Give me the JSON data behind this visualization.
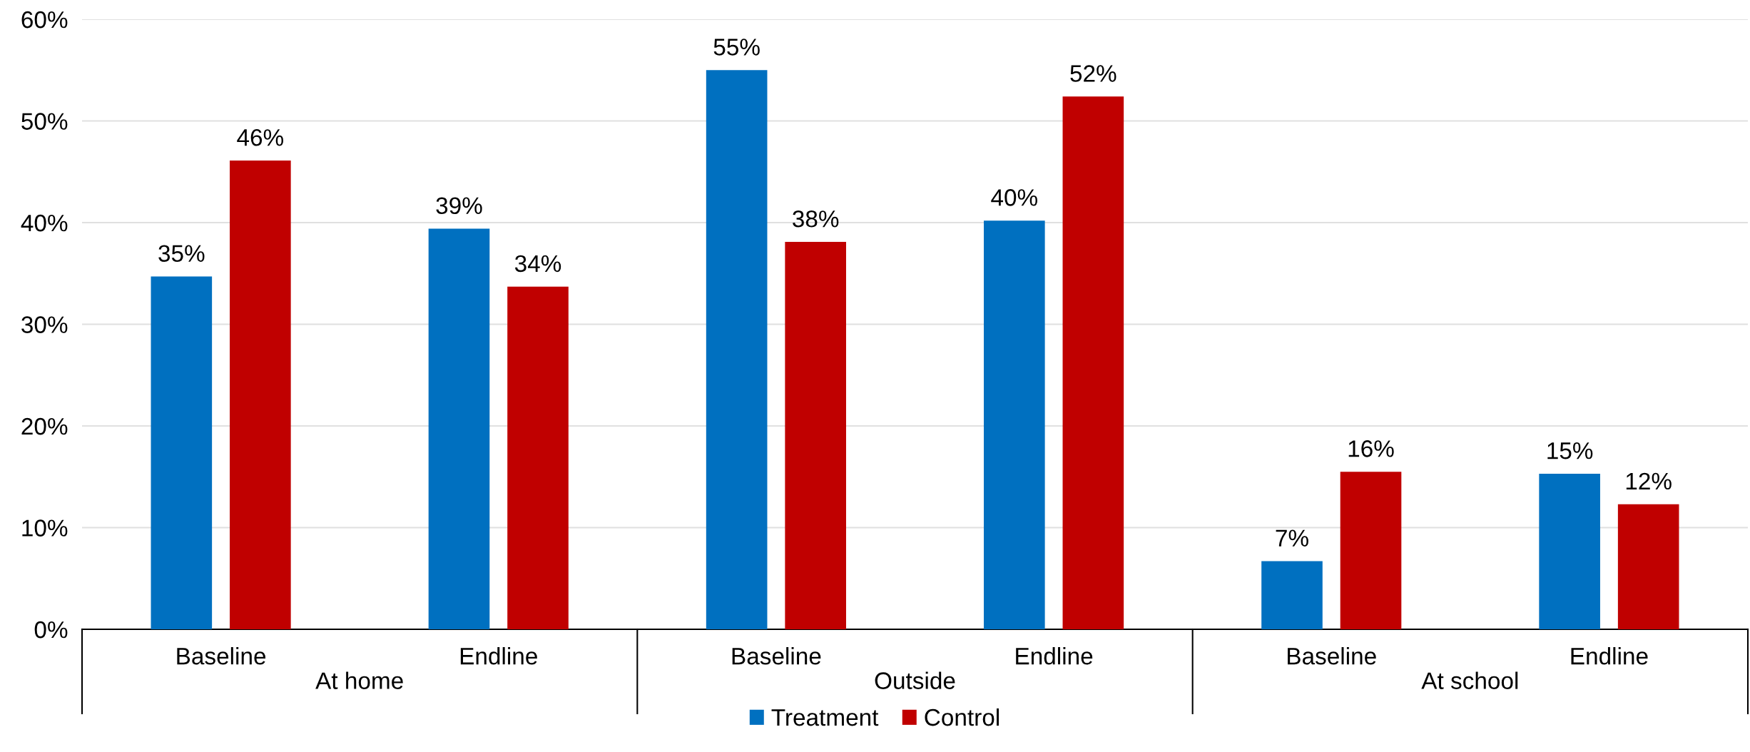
{
  "chart_data": {
    "type": "bar",
    "categories": [
      "Baseline",
      "Endline",
      "Baseline",
      "Endline",
      "Baseline",
      "Endline"
    ],
    "series": [
      {
        "name": "Treatment",
        "color": "#0070c0",
        "values": [
          34.7,
          39.4,
          55.0,
          40.2,
          6.7,
          15.3
        ],
        "value_labels": [
          "35%",
          "39%",
          "55%",
          "40%",
          "7%",
          "15%"
        ]
      },
      {
        "name": "Control",
        "color": "#c00000",
        "values": [
          46.1,
          33.7,
          38.1,
          52.4,
          15.5,
          12.3
        ],
        "value_labels": [
          "46%",
          "34%",
          "38%",
          "52%",
          "16%",
          "12%"
        ]
      }
    ],
    "annotations": [
      "At home",
      "Outside",
      "At school"
    ],
    "ylim": [
      0,
      60
    ],
    "yticks": [
      {
        "value": 0,
        "label": "0%"
      },
      {
        "value": 10,
        "label": "10%"
      },
      {
        "value": 20,
        "label": "20%"
      },
      {
        "value": 30,
        "label": "30%"
      },
      {
        "value": 40,
        "label": "40%"
      },
      {
        "value": 50,
        "label": "50%"
      },
      {
        "value": 60,
        "label": "60%"
      }
    ],
    "grid": "y",
    "legend": "bottom"
  }
}
